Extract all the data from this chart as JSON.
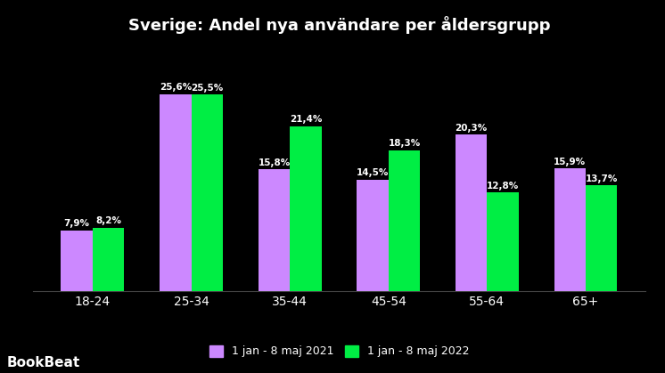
{
  "title": "Sverige: Andel nya användare per åldersgrupp",
  "categories": [
    "18-24",
    "25-34",
    "35-44",
    "45-54",
    "55-64",
    "65+"
  ],
  "series_2021": [
    7.9,
    25.6,
    15.8,
    14.5,
    20.3,
    15.9
  ],
  "series_2022": [
    8.2,
    25.5,
    21.4,
    18.3,
    12.8,
    13.7
  ],
  "labels_2021": [
    "7,9%",
    "25,6%",
    "15,8%",
    "14,5%",
    "20,3%",
    "15,9%"
  ],
  "labels_2022": [
    "8,2%",
    "25,5%",
    "21,4%",
    "18,3%",
    "12,8%",
    "13,7%"
  ],
  "color_2021": "#cc88ff",
  "color_2022": "#00ee44",
  "background_color": "#000000",
  "text_color": "#ffffff",
  "title_fontsize": 13,
  "legend_label_2021": "1 jan - 8 maj 2021",
  "legend_label_2022": "1 jan - 8 maj 2022",
  "watermark": "BookBeat",
  "bar_width": 0.32,
  "ylim": [
    0,
    32
  ]
}
